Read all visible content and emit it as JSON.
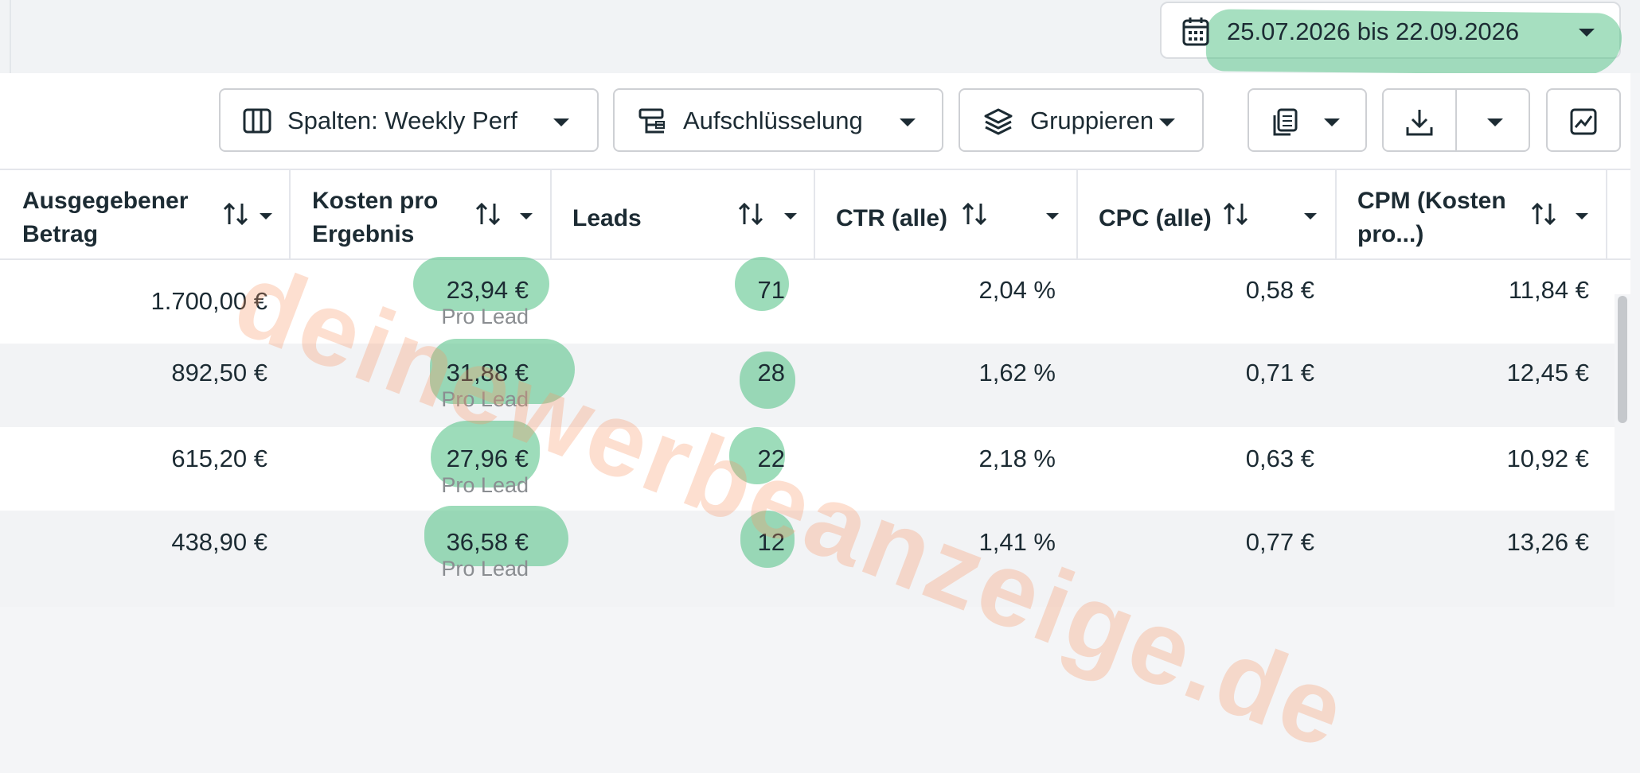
{
  "date_range": {
    "label": "25.07.2026 bis 22.09.2026",
    "icon": "calendar-icon"
  },
  "toolbar": {
    "columns_label": "Spalten: Weekly Perf",
    "breakdown_label": "Aufschlüsselung",
    "group_label": "Gruppieren"
  },
  "table": {
    "headers": [
      {
        "label": "Ausgegebener Betrag"
      },
      {
        "label": "Kosten pro Ergebnis"
      },
      {
        "label": "Leads"
      },
      {
        "label": "CTR (alle)"
      },
      {
        "label": "CPC (alle)"
      },
      {
        "label": "CPM (Kosten pro...)"
      }
    ],
    "rows": [
      {
        "spend": "1.700,00 €",
        "cost_per_result": "23,94 €",
        "result_type": "Pro Lead",
        "leads": "71",
        "ctr": "2,04 %",
        "cpc": "0,58 €",
        "cpm": "11,84 €"
      },
      {
        "spend": "892,50 €",
        "cost_per_result": "31,88 €",
        "result_type": "Pro Lead",
        "leads": "28",
        "ctr": "1,62 %",
        "cpc": "0,71 €",
        "cpm": "12,45 €"
      },
      {
        "spend": "615,20 €",
        "cost_per_result": "27,96 €",
        "result_type": "Pro Lead",
        "leads": "22",
        "ctr": "2,18 %",
        "cpc": "0,63 €",
        "cpm": "10,92 €"
      },
      {
        "spend": "438,90 €",
        "cost_per_result": "36,58 €",
        "result_type": "Pro Lead",
        "leads": "12",
        "ctr": "1,41 %",
        "cpc": "0,77 €",
        "cpm": "13,26 €"
      }
    ]
  },
  "watermark": "deinewerbeanzeige.de",
  "colors": {
    "highlight": "#5cc48c",
    "watermark": "#fa9664",
    "text": "#1c2b33"
  }
}
